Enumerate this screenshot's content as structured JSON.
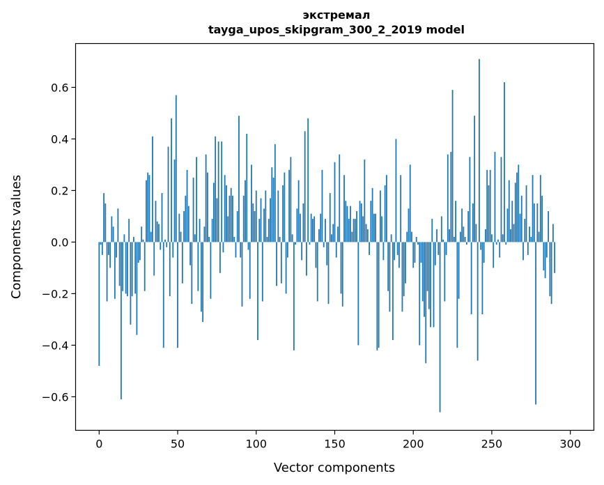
{
  "chart_data": {
    "type": "bar",
    "title": "экстремал",
    "subtitle": "tayga_upos_skipgram_300_2_2019 model",
    "xlabel": "Vector components",
    "ylabel": "Components values",
    "xlim": [
      -15,
      315
    ],
    "ylim": [
      -0.73,
      0.77
    ],
    "xticks": [
      0,
      50,
      100,
      150,
      200,
      250,
      300
    ],
    "xtick_labels": [
      "0",
      "50",
      "100",
      "150",
      "200",
      "250",
      "300"
    ],
    "yticks": [
      -0.6,
      -0.4,
      -0.2,
      0.0,
      0.2,
      0.4,
      0.6
    ],
    "ytick_labels": [
      "−0.6",
      "−0.4",
      "−0.2",
      "0.0",
      "0.2",
      "0.4",
      "0.6"
    ],
    "bar_color": "#1f77b4",
    "bar_width": 0.8,
    "values": [
      -0.48,
      -0.01,
      -0.05,
      0.19,
      0.15,
      -0.23,
      -0.05,
      -0.1,
      0.1,
      0.06,
      -0.22,
      -0.06,
      0.13,
      -0.17,
      -0.61,
      -0.19,
      0.03,
      -0.2,
      -0.21,
      0.09,
      -0.32,
      -0.21,
      0.02,
      -0.2,
      -0.36,
      -0.08,
      -0.07,
      0.06,
      0.01,
      -0.19,
      0.24,
      0.27,
      0.26,
      0.04,
      0.41,
      -0.13,
      0.16,
      0.08,
      0.07,
      -0.03,
      0.19,
      -0.41,
      0.01,
      -0.02,
      0.37,
      -0.21,
      0.48,
      -0.06,
      0.32,
      0.57,
      -0.41,
      0.11,
      0.04,
      -0.16,
      0.12,
      0.18,
      0.28,
      0.14,
      -0.09,
      -0.24,
      0.25,
      0.03,
      0.33,
      -0.19,
      0.09,
      -0.27,
      -0.31,
      0.06,
      0.34,
      0.27,
      0.02,
      -0.22,
      0.09,
      0.23,
      0.41,
      0.17,
      0.39,
      -0.12,
      0.39,
      -0.04,
      0.26,
      0.22,
      0.1,
      0.18,
      0.21,
      0.18,
      0.02,
      -0.06,
      0.12,
      0.49,
      -0.06,
      -0.25,
      0.18,
      0.24,
      0.42,
      -0.03,
      -0.22,
      0.3,
      0.15,
      0.12,
      0.2,
      -0.38,
      0.09,
      0.17,
      -0.23,
      0.13,
      0.2,
      0.02,
      0.09,
      0.17,
      0.29,
      0.25,
      0.38,
      -0.17,
      0.2,
      0.02,
      -0.16,
      0.22,
      0.27,
      -0.2,
      -0.06,
      0.28,
      0.33,
      0.03,
      -0.42,
      -0.01,
      0.13,
      0.24,
      0.11,
      -0.07,
      0.15,
      0.43,
      -0.13,
      0.48,
      -0.01,
      0.11,
      0.09,
      0.1,
      -0.1,
      -0.23,
      0.05,
      0.11,
      0.28,
      -0.02,
      0.09,
      -0.09,
      -0.24,
      0.19,
      0.03,
      0.07,
      0.31,
      -0.06,
      0.06,
      0.34,
      -0.2,
      -0.25,
      0.26,
      0.16,
      0.14,
      0.09,
      0.14,
      0.04,
      0.09,
      0.09,
      0.12,
      -0.4,
      0.16,
      0.15,
      0.1,
      0.32,
      0.07,
      0.05,
      -0.05,
      0.16,
      0.21,
      0.11,
      0.11,
      -0.42,
      -0.41,
      0.2,
      0.1,
      -0.07,
      0.22,
      0.26,
      -0.19,
      -0.27,
      0.03,
      -0.38,
      -0.07,
      0.4,
      -0.05,
      -0.1,
      0.26,
      -0.27,
      -0.21,
      -0.16,
      0.04,
      0.13,
      0.3,
      0.04,
      -0.1,
      -0.08,
      0.02,
      -0.01,
      -0.4,
      -0.08,
      -0.23,
      -0.29,
      -0.47,
      -0.19,
      -0.26,
      -0.33,
      0.09,
      -0.33,
      -0.09,
      0.05,
      -0.05,
      -0.66,
      0.1,
      0.01,
      -0.23,
      -0.05,
      0.34,
      0.05,
      0.35,
      0.59,
      0.02,
      0.16,
      -0.41,
      -0.22,
      0.04,
      0.13,
      0.06,
      0.02,
      -0.01,
      0.12,
      0.33,
      -0.28,
      0.15,
      0.49,
      0.07,
      -0.46,
      0.71,
      -0.03,
      -0.28,
      -0.08,
      0.05,
      0.28,
      0.22,
      0.28,
      0.03,
      -0.1,
      0.35,
      -0.01,
      0.01,
      -0.06,
      0.33,
      0.03,
      0.62,
      -0.01,
      0.13,
      0.24,
      0.05,
      0.16,
      0.07,
      0.23,
      0.27,
      0.3,
      0.11,
      0.18,
      -0.07,
      0.09,
      0.22,
      -0.05,
      0.06,
      0.02,
      0.26,
      0.15,
      -0.63,
      0.15,
      0.04,
      0.26,
      0.18,
      -0.11,
      -0.14,
      -0.06,
      0.12,
      -0.21,
      -0.24,
      0.07,
      -0.12
    ]
  }
}
